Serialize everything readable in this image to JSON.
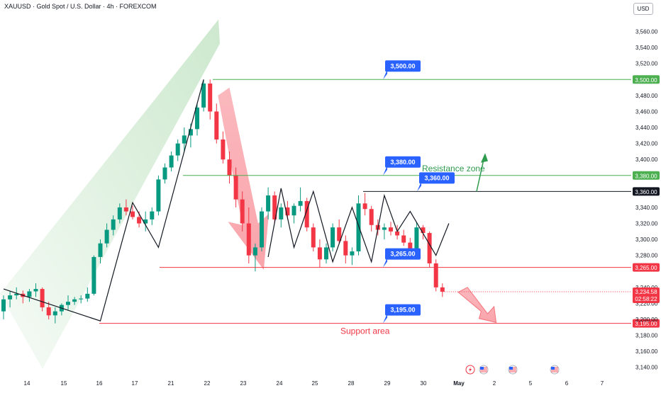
{
  "header": {
    "title": "XAUUSD · Gold Spot / U.S. Dollar · 4h · FOREXCOM"
  },
  "currency_label": "USD",
  "icons": [
    "lightning-icon",
    "us-flag-icon",
    "us-flag-icon",
    "us-flag-icon"
  ],
  "colors": {
    "up": "#089981",
    "down": "#f23645",
    "resistance": "#4caf50",
    "support": "#f23645",
    "label_blue": "#2962ff",
    "black_line": "#131722"
  },
  "chart_data": {
    "type": "candlestick",
    "title": "XAUUSD · Gold Spot / U.S. Dollar · 4h · FOREXCOM",
    "ylim": [
      3130,
      3580
    ],
    "y_ticks": [
      "3,560.00",
      "3,540.00",
      "3,520.00",
      "3,500.00",
      "3,480.00",
      "3,460.00",
      "3,440.00",
      "3,420.00",
      "3,400.00",
      "3,380.00",
      "3,360.00",
      "3,340.00",
      "3,320.00",
      "3,300.00",
      "3,280.00",
      "3,265.00",
      "3,240.00",
      "3,220.00",
      "3,200.00",
      "3,180.00",
      "3,160.00",
      "3,140.00"
    ],
    "x_ticks": [
      "14",
      "15",
      "16",
      "17",
      "21",
      "22",
      "23",
      "24",
      "25",
      "28",
      "29",
      "30",
      "May",
      "2",
      "5",
      "6",
      "7"
    ],
    "candles": [
      [
        3210,
        3230,
        3200,
        3225
      ],
      [
        3225,
        3235,
        3215,
        3230
      ],
      [
        3230,
        3240,
        3225,
        3232
      ],
      [
        3232,
        3236,
        3220,
        3228
      ],
      [
        3228,
        3238,
        3222,
        3235
      ],
      [
        3235,
        3245,
        3228,
        3238
      ],
      [
        3238,
        3240,
        3210,
        3215
      ],
      [
        3215,
        3222,
        3200,
        3205
      ],
      [
        3205,
        3215,
        3195,
        3210
      ],
      [
        3210,
        3220,
        3205,
        3218
      ],
      [
        3218,
        3230,
        3212,
        3222
      ],
      [
        3222,
        3228,
        3218,
        3225
      ],
      [
        3225,
        3230,
        3220,
        3226
      ],
      [
        3226,
        3240,
        3222,
        3232
      ],
      [
        3232,
        3280,
        3230,
        3278
      ],
      [
        3278,
        3300,
        3270,
        3295
      ],
      [
        3295,
        3320,
        3290,
        3312
      ],
      [
        3312,
        3330,
        3305,
        3325
      ],
      [
        3325,
        3345,
        3320,
        3340
      ],
      [
        3340,
        3350,
        3330,
        3335
      ],
      [
        3335,
        3342,
        3325,
        3328
      ],
      [
        3328,
        3335,
        3315,
        3320
      ],
      [
        3320,
        3335,
        3310,
        3325
      ],
      [
        3325,
        3340,
        3318,
        3335
      ],
      [
        3335,
        3380,
        3330,
        3375
      ],
      [
        3375,
        3395,
        3370,
        3390
      ],
      [
        3390,
        3410,
        3385,
        3405
      ],
      [
        3405,
        3425,
        3398,
        3420
      ],
      [
        3420,
        3440,
        3410,
        3430
      ],
      [
        3430,
        3445,
        3415,
        3438
      ],
      [
        3438,
        3470,
        3430,
        3465
      ],
      [
        3465,
        3500,
        3460,
        3495
      ],
      [
        3495,
        3500,
        3450,
        3460
      ],
      [
        3460,
        3470,
        3420,
        3425
      ],
      [
        3425,
        3435,
        3395,
        3400
      ],
      [
        3400,
        3410,
        3370,
        3380
      ],
      [
        3380,
        3390,
        3340,
        3350
      ],
      [
        3350,
        3360,
        3310,
        3320
      ],
      [
        3320,
        3340,
        3270,
        3280
      ],
      [
        3280,
        3295,
        3260,
        3290
      ],
      [
        3290,
        3340,
        3285,
        3335
      ],
      [
        3335,
        3365,
        3325,
        3355
      ],
      [
        3355,
        3360,
        3320,
        3325
      ],
      [
        3325,
        3345,
        3315,
        3340
      ],
      [
        3340,
        3348,
        3325,
        3330
      ],
      [
        3330,
        3345,
        3320,
        3342
      ],
      [
        3342,
        3365,
        3335,
        3348
      ],
      [
        3348,
        3352,
        3310,
        3315
      ],
      [
        3315,
        3320,
        3285,
        3290
      ],
      [
        3290,
        3300,
        3265,
        3275
      ],
      [
        3275,
        3295,
        3270,
        3290
      ],
      [
        3290,
        3320,
        3285,
        3315
      ],
      [
        3315,
        3325,
        3295,
        3298
      ],
      [
        3298,
        3305,
        3270,
        3280
      ],
      [
        3280,
        3290,
        3268,
        3285
      ],
      [
        3285,
        3355,
        3280,
        3345
      ],
      [
        3345,
        3358,
        3330,
        3338
      ],
      [
        3338,
        3342,
        3310,
        3318
      ],
      [
        3318,
        3325,
        3305,
        3312
      ],
      [
        3312,
        3320,
        3300,
        3315
      ],
      [
        3315,
        3322,
        3305,
        3310
      ],
      [
        3310,
        3318,
        3300,
        3305
      ],
      [
        3305,
        3312,
        3292,
        3296
      ],
      [
        3296,
        3302,
        3275,
        3280
      ],
      [
        3280,
        3322,
        3278,
        3315
      ],
      [
        3315,
        3318,
        3300,
        3308
      ],
      [
        3308,
        3310,
        3265,
        3270
      ],
      [
        3270,
        3275,
        3235,
        3240
      ],
      [
        3240,
        3245,
        3228,
        3234.58
      ]
    ],
    "levels": [
      {
        "price": 3500,
        "label": "3,500.00"
      },
      {
        "price": 3380,
        "label": "3,380.00"
      },
      {
        "price": 3360,
        "label": "3,360.00"
      },
      {
        "price": 3265,
        "label": "3,265.00"
      },
      {
        "price": 3195,
        "label": "3,195.00"
      }
    ],
    "current_price": "3,234.58",
    "countdown": "02:58:22",
    "annotations": {
      "resistance": "Resistance zone",
      "support": "Support area"
    },
    "grid": false
  }
}
